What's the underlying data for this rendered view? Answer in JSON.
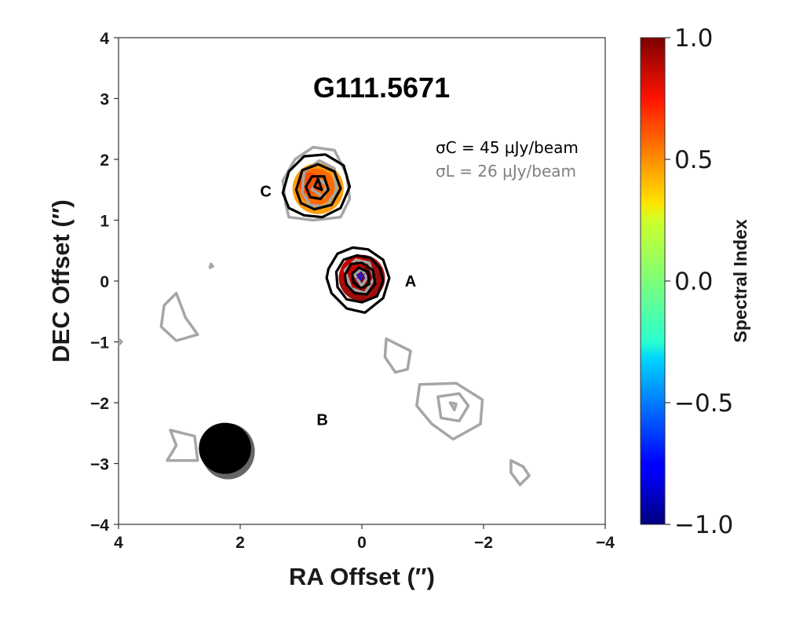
{
  "chart_data": {
    "type": "contour_map",
    "title": "G111.5671",
    "xlabel": "RA Offset (″)",
    "ylabel": "DEC Offset (″)",
    "xlim": [
      4,
      -4
    ],
    "ylim": [
      -4,
      4
    ],
    "xticks": [
      4,
      2,
      0,
      -2,
      -4
    ],
    "yticks": [
      4,
      3,
      2,
      1,
      0,
      -1,
      -2,
      -3,
      -4
    ],
    "xtick_labels": [
      "4",
      "2",
      "0",
      "−2",
      "−4"
    ],
    "ytick_labels": [
      "4",
      "3",
      "2",
      "1",
      "0",
      "−1",
      "−2",
      "−3",
      "−4"
    ],
    "noise": {
      "c_band": {
        "label": "σC = 45 µJy/beam",
        "color": "#000000"
      },
      "l_band": {
        "label": "σL = 26 µJy/beam",
        "color": "#808080"
      }
    },
    "sources": [
      {
        "name": "A",
        "x": 0.0,
        "y": 0.05,
        "label_x": -0.8,
        "label_y": 0.0
      },
      {
        "name": "B",
        "x": -1.5,
        "y": -2.05,
        "label_x": 0.65,
        "label_y": -2.28
      },
      {
        "name": "C",
        "x": 0.75,
        "y": 1.55,
        "label_x": 1.58,
        "label_y": 1.48
      }
    ],
    "marker": {
      "type": "asterisk",
      "x": 0.02,
      "y": 0.02,
      "color": "#1a1aff"
    },
    "beam": {
      "c_band": {
        "x": 2.25,
        "y": -2.75,
        "a": 0.43,
        "b": 0.42
      },
      "l_band": {
        "x": 2.2,
        "y": -2.8,
        "a": 0.44,
        "b": 0.46
      }
    },
    "colorbar": {
      "label": "Spectral Index",
      "range": [
        -1.0,
        1.0
      ],
      "ticks": [
        1.0,
        0.5,
        0.0,
        -0.5,
        -1.0
      ],
      "tick_labels": [
        "1.0",
        "0.5",
        "0.0",
        "−0.5",
        "−1.0"
      ],
      "colormap": "jet"
    },
    "spectral_index_blobs": [
      {
        "x": 0.0,
        "y": 0.05,
        "r": 0.38,
        "value": 0.95
      },
      {
        "x": 0.08,
        "y": 0.12,
        "r": 0.28,
        "value": 0.85
      },
      {
        "x": 0.0,
        "y": 0.05,
        "r": 0.18,
        "value": 1.0
      },
      {
        "x": 0.72,
        "y": 1.52,
        "r": 0.42,
        "value": 0.45
      },
      {
        "x": 0.75,
        "y": 1.55,
        "r": 0.3,
        "value": 0.55
      },
      {
        "x": 0.85,
        "y": 1.6,
        "r": 0.18,
        "value": 0.6
      }
    ],
    "c_band_contours": [
      [
        [
          0.55,
          0.2
        ],
        [
          0.4,
          0.45
        ],
        [
          0.15,
          0.55
        ],
        [
          -0.1,
          0.52
        ],
        [
          -0.35,
          0.35
        ],
        [
          -0.45,
          0.05
        ],
        [
          -0.35,
          -0.28
        ],
        [
          -0.05,
          -0.52
        ],
        [
          0.25,
          -0.45
        ],
        [
          0.5,
          -0.2
        ],
        [
          0.58,
          0.05
        ]
      ],
      [
        [
          0.42,
          0.15
        ],
        [
          0.3,
          0.35
        ],
        [
          0.08,
          0.42
        ],
        [
          -0.15,
          0.38
        ],
        [
          -0.3,
          0.2
        ],
        [
          -0.35,
          0.0
        ],
        [
          -0.25,
          -0.25
        ],
        [
          0.0,
          -0.35
        ],
        [
          0.25,
          -0.3
        ],
        [
          0.4,
          -0.1
        ]
      ],
      [
        [
          0.28,
          0.1
        ],
        [
          0.18,
          0.28
        ],
        [
          0.0,
          0.3
        ],
        [
          -0.18,
          0.18
        ],
        [
          -0.22,
          -0.05
        ],
        [
          -0.08,
          -0.22
        ],
        [
          0.12,
          -0.2
        ],
        [
          0.26,
          -0.05
        ]
      ],
      [
        [
          0.16,
          0.12
        ],
        [
          0.05,
          0.22
        ],
        [
          -0.1,
          0.15
        ],
        [
          -0.12,
          -0.05
        ],
        [
          0.02,
          -0.12
        ],
        [
          0.14,
          -0.02
        ]
      ],
      [
        [
          1.3,
          1.45
        ],
        [
          1.2,
          1.8
        ],
        [
          0.95,
          2.05
        ],
        [
          0.6,
          2.08
        ],
        [
          0.3,
          1.9
        ],
        [
          0.2,
          1.55
        ],
        [
          0.35,
          1.2
        ],
        [
          0.65,
          1.05
        ],
        [
          0.95,
          1.08
        ],
        [
          1.2,
          1.2
        ]
      ],
      [
        [
          1.08,
          1.5
        ],
        [
          0.98,
          1.82
        ],
        [
          0.72,
          1.92
        ],
        [
          0.45,
          1.8
        ],
        [
          0.35,
          1.52
        ],
        [
          0.5,
          1.25
        ],
        [
          0.78,
          1.18
        ],
        [
          1.0,
          1.28
        ]
      ],
      [
        [
          0.92,
          1.55
        ],
        [
          0.82,
          1.72
        ],
        [
          0.62,
          1.72
        ],
        [
          0.55,
          1.5
        ],
        [
          0.68,
          1.35
        ],
        [
          0.85,
          1.38
        ]
      ],
      [
        [
          0.78,
          1.55
        ],
        [
          0.72,
          1.68
        ],
        [
          0.66,
          1.5
        ]
      ]
    ],
    "l_band_contours": [
      [
        [
          0.28,
          0.18
        ],
        [
          0.1,
          0.35
        ],
        [
          -0.12,
          0.3
        ],
        [
          -0.2,
          0.05
        ],
        [
          -0.05,
          -0.2
        ],
        [
          0.18,
          -0.12
        ]
      ],
      [
        [
          0.12,
          0.1
        ],
        [
          0.0,
          0.2
        ],
        [
          -0.08,
          0.05
        ],
        [
          0.0,
          -0.08
        ]
      ],
      [
        [
          1.25,
          1.25
        ],
        [
          1.3,
          1.65
        ],
        [
          1.1,
          2.0
        ],
        [
          0.8,
          2.2
        ],
        [
          0.45,
          2.15
        ],
        [
          0.25,
          1.75
        ],
        [
          0.2,
          1.35
        ],
        [
          0.35,
          1.05
        ],
        [
          0.8,
          1.0
        ],
        [
          1.2,
          1.05
        ]
      ],
      [
        [
          0.98,
          1.45
        ],
        [
          0.95,
          1.8
        ],
        [
          0.7,
          1.98
        ],
        [
          0.45,
          1.85
        ],
        [
          0.42,
          1.48
        ],
        [
          0.6,
          1.22
        ],
        [
          0.85,
          1.25
        ]
      ],
      [
        [
          0.82,
          1.5
        ],
        [
          0.72,
          1.68
        ],
        [
          0.58,
          1.58
        ],
        [
          0.62,
          1.38
        ]
      ],
      [
        [
          3.05,
          -0.2
        ],
        [
          2.9,
          -0.6
        ],
        [
          2.7,
          -0.88
        ],
        [
          3.05,
          -0.98
        ],
        [
          3.3,
          -0.75
        ],
        [
          3.25,
          -0.4
        ]
      ],
      [
        [
          -0.4,
          -0.95
        ],
        [
          -0.8,
          -1.15
        ],
        [
          -0.75,
          -1.45
        ],
        [
          -0.55,
          -1.5
        ],
        [
          -0.38,
          -1.25
        ]
      ],
      [
        [
          -0.95,
          -1.7
        ],
        [
          -1.55,
          -1.68
        ],
        [
          -1.98,
          -1.95
        ],
        [
          -1.95,
          -2.35
        ],
        [
          -1.5,
          -2.6
        ],
        [
          -1.15,
          -2.35
        ],
        [
          -0.9,
          -2.05
        ]
      ],
      [
        [
          -1.25,
          -1.9
        ],
        [
          -1.6,
          -1.85
        ],
        [
          -1.75,
          -2.05
        ],
        [
          -1.6,
          -2.3
        ],
        [
          -1.3,
          -2.25
        ]
      ],
      [
        [
          -1.45,
          -2.0
        ],
        [
          -1.55,
          -2.02
        ],
        [
          -1.52,
          -2.12
        ]
      ],
      [
        [
          3.15,
          -2.45
        ],
        [
          2.75,
          -2.55
        ],
        [
          2.7,
          -2.95
        ],
        [
          3.2,
          -2.95
        ],
        [
          3.05,
          -2.7
        ]
      ],
      [
        [
          -2.45,
          -2.95
        ],
        [
          -2.65,
          -3.05
        ],
        [
          -2.75,
          -3.2
        ],
        [
          -2.6,
          -3.35
        ],
        [
          -2.45,
          -3.15
        ]
      ],
      [
        [
          2.48,
          0.28
        ],
        [
          2.45,
          0.24
        ],
        [
          2.5,
          0.22
        ]
      ],
      [
        [
          4.0,
          -0.95
        ],
        [
          3.95,
          -1.0
        ],
        [
          4.0,
          -1.05
        ]
      ]
    ]
  }
}
